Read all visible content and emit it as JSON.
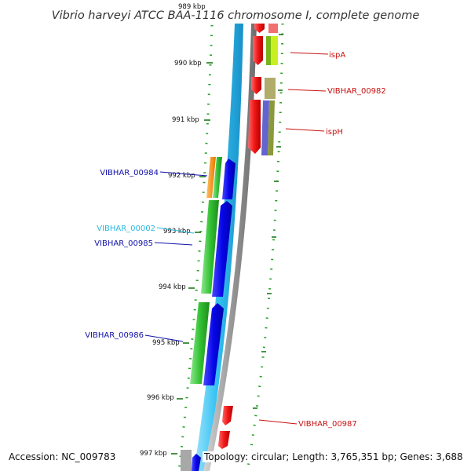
{
  "title": "Vibrio harveyi ATCC BAA-1116 chromosome I, complete genome",
  "kbp_labels": [
    "989 kbp",
    "990 kbp",
    "991 kbp",
    "992 kbp",
    "993 kbp",
    "994 kbp",
    "995 kbp",
    "996 kbp",
    "997 kbp"
  ],
  "gene_labels": {
    "ispA": "ispA",
    "vibhar_00982": "VIBHAR_00982",
    "isph": "ispH",
    "vibhar_00984": "VIBHAR_00984",
    "vibhar_00002": "VIBHAR_00002",
    "vibhar_00985": "VIBHAR_00985",
    "vibhar_00986": "VIBHAR_00986",
    "vibhar_00987": "VIBHAR_00987"
  },
  "footer": {
    "accession": "Accession: NC_009783",
    "summary": "Topology: circular; Length: 3,765,351 bp; Genes: 3,688"
  },
  "colors": {
    "forward_label": "#1010a8",
    "reverse_label": "#c81010",
    "light_label": "#28b8e0",
    "backbone_blue": "#3cc8f4",
    "backbone_gray": "#9a9a9a"
  }
}
